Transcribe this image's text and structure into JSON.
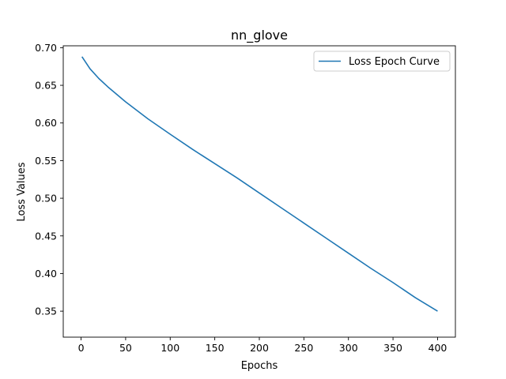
{
  "chart_data": {
    "type": "line",
    "title": "nn_glove",
    "xlabel": "Epochs",
    "ylabel": "Loss Values",
    "xlim": [
      -20,
      420
    ],
    "ylim": [
      0.3155,
      0.7025
    ],
    "xticks": [
      0,
      50,
      100,
      150,
      200,
      250,
      300,
      350,
      400
    ],
    "yticks": [
      0.35,
      0.4,
      0.45,
      0.5,
      0.55,
      0.6,
      0.65,
      0.7
    ],
    "ytick_labels": [
      "0.35",
      "0.40",
      "0.45",
      "0.50",
      "0.55",
      "0.60",
      "0.65",
      "0.70"
    ],
    "grid": false,
    "legend_position": "top-right",
    "series": [
      {
        "name": "Loss Epoch Curve",
        "color": "#1f77b4",
        "x": [
          1,
          10,
          20,
          30,
          40,
          50,
          75,
          100,
          125,
          150,
          175,
          200,
          225,
          250,
          275,
          300,
          325,
          350,
          375,
          400
        ],
        "y": [
          0.688,
          0.672,
          0.659,
          0.648,
          0.638,
          0.628,
          0.6055,
          0.585,
          0.565,
          0.546,
          0.527,
          0.507,
          0.487,
          0.467,
          0.447,
          0.427,
          0.407,
          0.388,
          0.368,
          0.35
        ]
      }
    ]
  }
}
